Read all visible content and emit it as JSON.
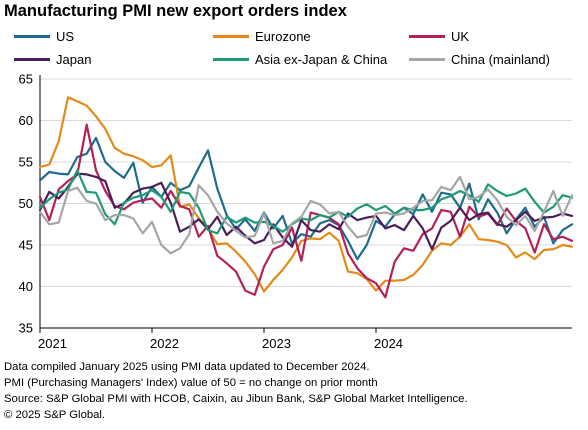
{
  "title": "Manufacturing PMI new export orders index",
  "notes": [
    "Data compiled January 2025 using PMI data updated to December 2024.",
    "PMI (Purchasing Managers' Index) value of 50 = no change on prior month",
    "Source: S&P Global PMI with HCOB, Caixin, au Jibun Bank, S&P Global Market Intelligence.",
    "© 2025 S&P Global."
  ],
  "chart_data": {
    "type": "line",
    "title": "Manufacturing PMI new export orders index",
    "xlabel": "",
    "ylabel": "",
    "x_start": "2021-01",
    "x_end": "2024-12",
    "x_tick_labels": [
      "2021",
      "2022",
      "2023",
      "2024"
    ],
    "ylim": [
      35,
      65
    ],
    "y_ticks": [
      35,
      40,
      45,
      50,
      55,
      60,
      65
    ],
    "grid": "horizontal",
    "legend": "top",
    "series": [
      {
        "name": "US",
        "color": "#1f6b8c",
        "values": [
          52.8,
          53.8,
          53.6,
          53.5,
          55.6,
          56.0,
          57.9,
          55.0,
          53.9,
          53.1,
          54.9,
          50.1,
          52.0,
          50.8,
          52.5,
          51.6,
          52.1,
          54.3,
          56.4,
          51.8,
          48.6,
          46.9,
          48.1,
          46.7,
          48.9,
          47.0,
          48.5,
          45.2,
          46.3,
          46.0,
          47.6,
          48.0,
          47.4,
          45.5,
          43.3,
          45.0,
          47.9,
          47.2,
          48.7,
          49.5,
          48.7,
          51.1,
          49.0,
          51.3,
          51.1,
          49.5,
          52.4,
          48.1,
          50.5,
          48.9,
          46.4,
          48.1,
          49.5,
          47.2,
          48.4,
          45.2,
          46.8,
          47.5
        ]
      },
      {
        "name": "Eurozone",
        "color": "#e28a1a",
        "values": [
          54.4,
          54.7,
          57.5,
          62.8,
          62.3,
          61.8,
          60.5,
          59.0,
          56.7,
          56.0,
          55.7,
          55.2,
          54.4,
          54.6,
          55.8,
          49.6,
          49.9,
          48.2,
          47.0,
          45.1,
          45.2,
          44.2,
          43.0,
          41.5,
          39.4,
          40.8,
          42.0,
          43.5,
          45.5,
          45.8,
          45.7,
          46.5,
          45.5,
          41.8,
          41.6,
          40.9,
          39.5,
          40.7,
          40.7,
          40.8,
          41.4,
          42.6,
          44.3,
          45.2,
          45.0,
          46.0,
          47.5,
          45.7,
          45.6,
          45.4,
          45.0,
          43.5,
          44.1,
          43.3,
          44.4,
          44.5,
          45.0,
          44.8
        ]
      },
      {
        "name": "UK",
        "color": "#b3205a",
        "values": [
          50.8,
          48.0,
          51.7,
          52.7,
          53.5,
          59.5,
          54.0,
          51.5,
          49.7,
          49.3,
          50.1,
          50.4,
          50.6,
          49.5,
          51.5,
          49.7,
          49.3,
          46.0,
          47.3,
          43.7,
          42.8,
          41.8,
          39.5,
          39.0,
          42.4,
          44.5,
          45.0,
          47.1,
          43.1,
          48.9,
          48.6,
          48.3,
          47.5,
          44.0,
          42.2,
          41.0,
          40.4,
          38.7,
          43.0,
          44.6,
          44.3,
          46.3,
          47.0,
          49.2,
          49.0,
          46.0,
          49.6,
          48.4,
          48.8,
          47.4,
          49.4,
          47.9,
          47.0,
          44.1,
          47.5,
          45.7,
          46.0,
          45.5
        ]
      },
      {
        "name": "Japan",
        "color": "#4b1e5b",
        "values": [
          49.2,
          51.4,
          50.6,
          52.0,
          53.6,
          53.5,
          53.2,
          52.7,
          49.5,
          50.0,
          51.3,
          51.8,
          52.0,
          52.5,
          50.1,
          46.6,
          47.2,
          48.1,
          46.9,
          48.4,
          46.2,
          47.2,
          46.1,
          45.2,
          45.6,
          47.5,
          45.9,
          44.8,
          48.0,
          46.8,
          46.6,
          47.5,
          46.9,
          48.8,
          48.0,
          48.3,
          48.5,
          47.0,
          47.4,
          46.8,
          48.5,
          47.0,
          44.5,
          47.1,
          47.9,
          49.5,
          48.0,
          48.7,
          48.9,
          47.5,
          47.2,
          48.0,
          49.0,
          47.9,
          48.3,
          48.4,
          48.8,
          48.5
        ]
      },
      {
        "name": "Asia ex-Japan & China",
        "color": "#1f9a76",
        "values": [
          49.5,
          50.5,
          51.3,
          51.7,
          54.0,
          51.4,
          51.3,
          48.7,
          47.5,
          50.1,
          50.7,
          51.0,
          51.6,
          50.8,
          49.0,
          51.4,
          51.2,
          49.5,
          46.8,
          46.4,
          48.4,
          47.7,
          48.3,
          47.7,
          47.8,
          47.3,
          46.6,
          47.5,
          48.2,
          48.0,
          48.6,
          48.3,
          49.0,
          48.4,
          49.4,
          49.9,
          49.2,
          49.7,
          48.8,
          49.5,
          49.2,
          49.2,
          49.5,
          50.5,
          50.9,
          51.5,
          51.0,
          50.2,
          52.3,
          51.5,
          50.9,
          51.2,
          51.8,
          50.2,
          48.9,
          49.6,
          51.0,
          50.7
        ]
      },
      {
        "name": "China (mainland)",
        "color": "#a6a6a6",
        "values": [
          49.0,
          47.5,
          47.7,
          51.5,
          51.9,
          50.3,
          50.0,
          48.0,
          48.6,
          48.6,
          48.2,
          46.4,
          47.8,
          45.0,
          44.0,
          44.6,
          46.3,
          52.2,
          51.0,
          49.0,
          47.6,
          46.7,
          45.9,
          46.1,
          48.8,
          45.2,
          45.5,
          47.6,
          48.4,
          50.3,
          49.9,
          48.8,
          49.0,
          47.2,
          45.9,
          46.2,
          48.8,
          48.9,
          48.6,
          48.8,
          49.5,
          50.3,
          50.4,
          52.0,
          51.6,
          53.2,
          50.5,
          50.8,
          51.7,
          50.4,
          48.4,
          47.4,
          48.5,
          46.7,
          49.0,
          51.5,
          48.5,
          51.0
        ]
      }
    ]
  }
}
